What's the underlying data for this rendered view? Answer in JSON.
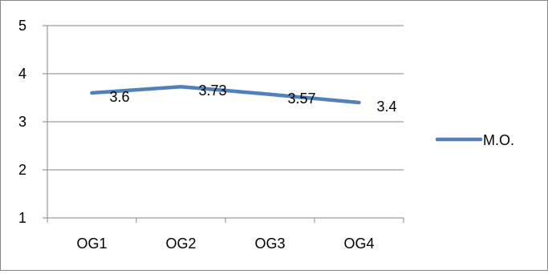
{
  "chart_data": {
    "type": "line",
    "categories": [
      "OG1",
      "OG2",
      "OG3",
      "OG4"
    ],
    "series": [
      {
        "name": "M.O.",
        "values": [
          3.6,
          3.73,
          3.57,
          3.4
        ],
        "labels": [
          "3.6",
          "3.73",
          "3.57",
          "3.4"
        ],
        "color": "#4F81BD"
      }
    ],
    "y_ticks": [
      "1",
      "2",
      "3",
      "4",
      "5"
    ],
    "ylim": [
      1,
      5
    ],
    "grid": true,
    "gridline_color": "#868686",
    "legend_position": "right"
  }
}
